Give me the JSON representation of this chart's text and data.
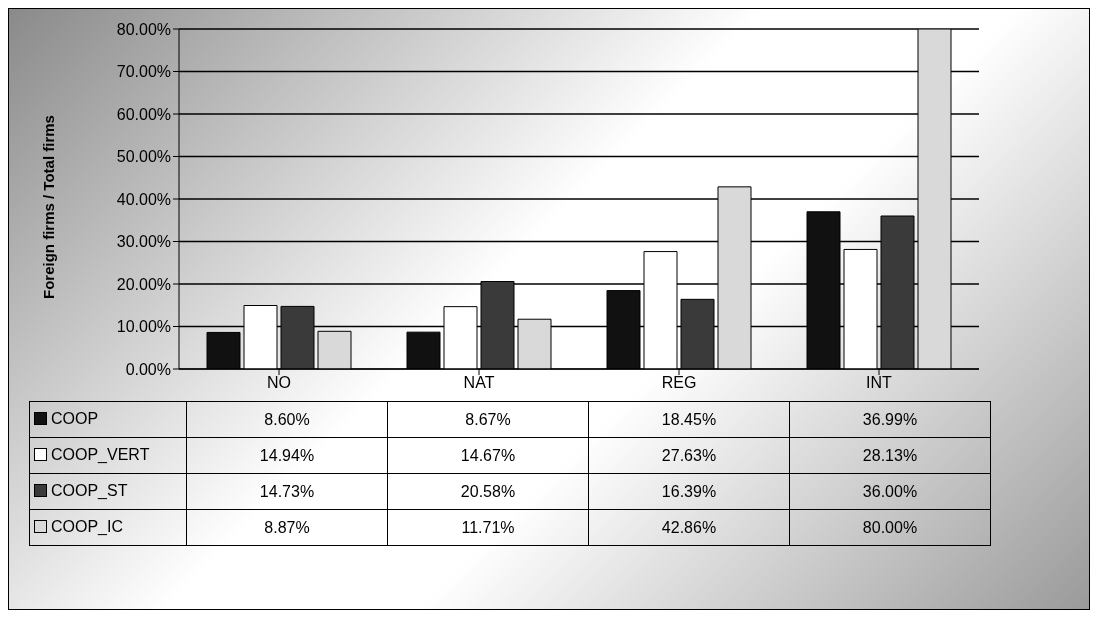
{
  "chart_data": {
    "type": "bar",
    "ylabel": "Foreign firms / Total firms",
    "categories": [
      "NO",
      "NAT",
      "REG",
      "INT"
    ],
    "series": [
      {
        "name": "COOP",
        "color": "#111111",
        "values": [
          8.6,
          8.67,
          18.45,
          36.99
        ],
        "value_labels": [
          "8.60%",
          "8.67%",
          "18.45%",
          "36.99%"
        ]
      },
      {
        "name": "COOP_VERT",
        "color": "#ffffff",
        "values": [
          14.94,
          14.67,
          27.63,
          28.13
        ],
        "value_labels": [
          "14.94%",
          "14.67%",
          "27.63%",
          "28.13%"
        ]
      },
      {
        "name": "COOP_ST",
        "color": "#3a3a3a",
        "values": [
          14.73,
          20.58,
          16.39,
          36.0
        ],
        "value_labels": [
          "14.73%",
          "20.58%",
          "16.39%",
          "36.00%"
        ]
      },
      {
        "name": "COOP_IC",
        "color": "#d9d9d9",
        "values": [
          8.87,
          11.71,
          42.86,
          80.0
        ],
        "value_labels": [
          "8.87%",
          "11.71%",
          "42.86%",
          "80.00%"
        ]
      }
    ],
    "ylim": [
      0,
      80
    ],
    "yticks": [
      {
        "value": 0,
        "label": "0.00%"
      },
      {
        "value": 10,
        "label": "10.00%"
      },
      {
        "value": 20,
        "label": "20.00%"
      },
      {
        "value": 30,
        "label": "30.00%"
      },
      {
        "value": 40,
        "label": "40.00%"
      },
      {
        "value": 50,
        "label": "50.00%"
      },
      {
        "value": 60,
        "label": "60.00%"
      },
      {
        "value": 70,
        "label": "70.00%"
      },
      {
        "value": 80,
        "label": "80.00%"
      }
    ],
    "grid": "y",
    "legend": "bottom"
  }
}
